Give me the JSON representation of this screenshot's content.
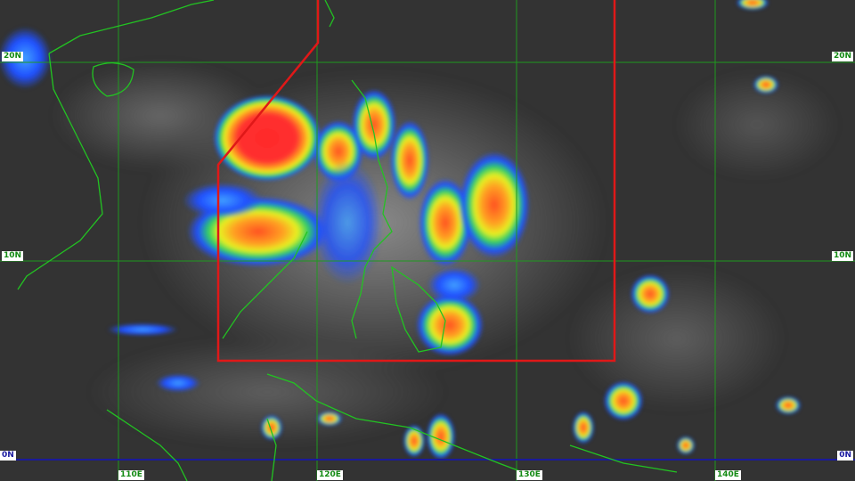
{
  "map": {
    "lat_labels_left": [
      "20N",
      "10N",
      "0N"
    ],
    "lat_labels_right": [
      "20N",
      "10N",
      "0N"
    ],
    "lon_labels": [
      "110E",
      "120E",
      "130E",
      "140E"
    ],
    "colors": {
      "grid": "#1f9a1f",
      "coastline": "#22c322",
      "equator": "#1a1a9a",
      "par_boundary": "#e01818",
      "label_text": "#138a13",
      "equator_label_text": "#1a1aa0"
    }
  }
}
